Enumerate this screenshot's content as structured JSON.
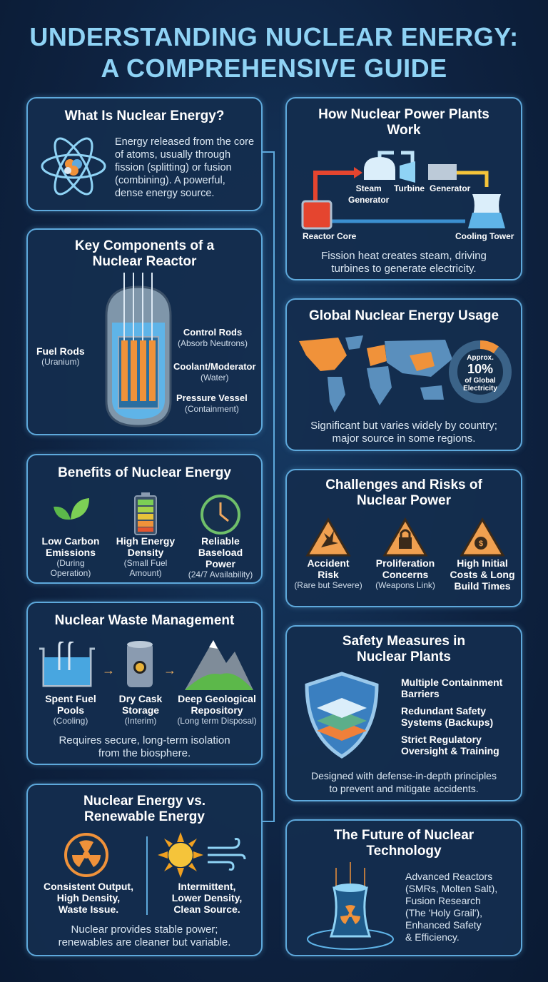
{
  "title": {
    "line1": "UNDERSTANDING NUCLEAR ENERGY:",
    "line2": "A COMPREHENSIVE GUIDE"
  },
  "what": {
    "heading": "What Is Nuclear Energy?",
    "desc": "Energy released from the core of atoms, usually through fission (splitting) or fusion (combining). A powerful, dense energy source.",
    "icon": "atom-icon"
  },
  "components": {
    "heading_l1": "Key Components of a",
    "heading_l2": "Nuclear Reactor",
    "items": [
      {
        "label": "Fuel Rods",
        "sub": "(Uranium)"
      },
      {
        "label": "Control Rods",
        "sub": "(Absorb Neutrons)"
      },
      {
        "label": "Coolant/Moderator",
        "sub": "(Water)"
      },
      {
        "label": "Pressure Vessel",
        "sub": "(Containment)"
      }
    ]
  },
  "benefits": {
    "heading": "Benefits of Nuclear Energy",
    "items": [
      {
        "l1": "Low Carbon",
        "l2": "Emissions",
        "sub1": "(During",
        "sub2": "Operation)",
        "icon": "leaf-icon"
      },
      {
        "l1": "High Energy",
        "l2": "Density",
        "sub1": "(Small Fuel",
        "sub2": "Amount)",
        "icon": "battery-icon"
      },
      {
        "l1": "Reliable",
        "l2": "Baseload",
        "l3": "Power",
        "sub1": "(24/7 Availability)",
        "icon": "clock-icon"
      }
    ]
  },
  "waste": {
    "heading": "Nuclear Waste Management",
    "items": [
      {
        "l1": "Spent Fuel",
        "l2": "Pools",
        "sub": "(Cooling)",
        "icon": "pool-icon"
      },
      {
        "l1": "Dry Cask",
        "l2": "Storage",
        "sub": "(Interim)",
        "icon": "cask-icon"
      },
      {
        "l1": "Deep Geological",
        "l2": "Repository",
        "sub": "(Long term Disposal)",
        "icon": "mountain-icon"
      }
    ],
    "desc_l1": "Requires secure, long-term isolation",
    "desc_l2": "from the biosphere."
  },
  "versus": {
    "heading_l1": "Nuclear Energy vs.",
    "heading_l2": "Renewable Energy",
    "nuclear": {
      "l1": "Consistent Output,",
      "l2": "High Density,",
      "l3": "Waste Issue."
    },
    "renewable": {
      "l1": "Intermittent,",
      "l2": "Lower Density,",
      "l3": "Clean Source."
    },
    "desc_l1": "Nuclear provides stable power;",
    "desc_l2": "renewables are cleaner but variable."
  },
  "plants": {
    "heading_l1": "How Nuclear Power Plants",
    "heading_l2": "Work",
    "steps": {
      "steam": "Steam",
      "steam2": "Generator",
      "turbine": "Turbine",
      "generator": "Generator",
      "reactor": "Reactor Core",
      "cooling": "Cooling Tower"
    },
    "desc_l1": "Fission heat creates steam, driving",
    "desc_l2": "turbines to generate electricity."
  },
  "global": {
    "heading": "Global Nuclear Energy Usage",
    "share_percent": 10,
    "donut": {
      "l1": "Approx.",
      "value": "10%",
      "l2": "of Global",
      "l3": "Electricity"
    },
    "desc_l1": "Significant but varies widely by country;",
    "desc_l2": "major source in some regions.",
    "highlight_color": "#f0923a"
  },
  "challenges": {
    "heading_l1": "Challenges and Risks of",
    "heading_l2": "Nuclear Power",
    "items": [
      {
        "l1": "Accident",
        "l2": "Risk",
        "sub": "(Rare but Severe)",
        "icon": "explosion-warning-icon"
      },
      {
        "l1": "Proliferation",
        "l2": "Concerns",
        "sub": "(Weapons Link)",
        "icon": "lock-warning-icon"
      },
      {
        "l1": "High Initial",
        "l2": "Costs & Long",
        "l3": "Build Times",
        "icon": "money-bag-warning-icon"
      }
    ]
  },
  "safety": {
    "heading_l1": "Safety Measures in",
    "heading_l2": "Nuclear Plants",
    "items": [
      {
        "l1": "Multiple Containment",
        "l2": "Barriers"
      },
      {
        "l1": "Redundant Safety",
        "l2": "Systems (Backups)"
      },
      {
        "l1": "Strict Regulatory",
        "l2": "Oversight & Training"
      }
    ],
    "desc_l1": "Designed with defense-in-depth principles",
    "desc_l2": "to prevent and mitigate accidents."
  },
  "future": {
    "heading_l1": "The Future of Nuclear",
    "heading_l2": "Technology",
    "lines": [
      "Advanced Reactors",
      "(SMRs, Molten Salt),",
      "Fusion Research",
      "(The 'Holy Grail'),",
      "Enhanced Safety",
      "& Efficiency."
    ]
  }
}
